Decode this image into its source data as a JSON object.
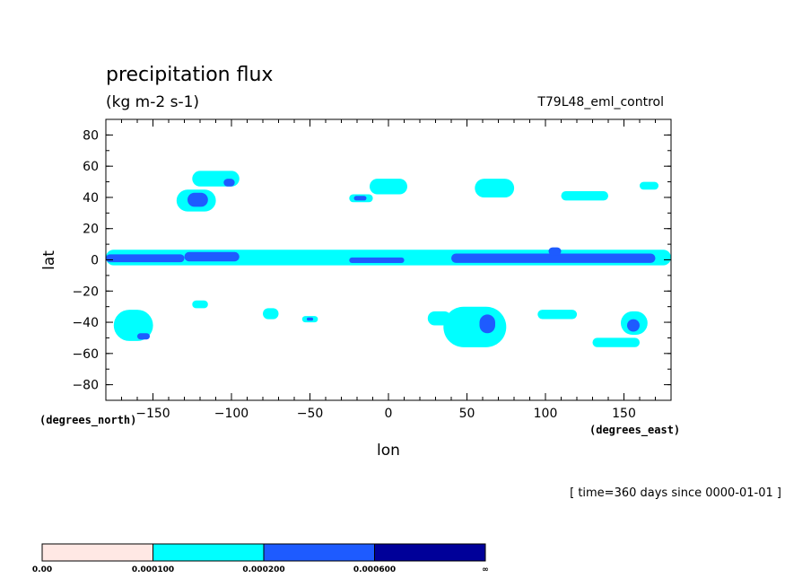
{
  "chart_data": {
    "type": "heatmap",
    "title": "precipitation flux",
    "units": "(kg m-2 s-1)",
    "run_label": "T79L48_eml_control",
    "xlabel": "lon",
    "ylabel": "lat",
    "x_units_note": "(degrees_east)",
    "y_units_note": "(degrees_north)",
    "time_note": "[ time=360 days since 0000-01-01 ]",
    "xlim": [
      -180,
      180
    ],
    "ylim": [
      -90,
      90
    ],
    "x_ticks": [
      -150,
      -100,
      -50,
      0,
      50,
      100,
      150
    ],
    "x_tick_labels": [
      "−150",
      "−100",
      "−50",
      "0",
      "50",
      "100",
      "150"
    ],
    "y_ticks": [
      80,
      60,
      40,
      20,
      0,
      -20,
      -40,
      -60,
      -80
    ],
    "y_tick_labels": [
      "80",
      "60",
      "40",
      "20",
      "0",
      "−20",
      "−40",
      "−60",
      "−80"
    ],
    "grid": false,
    "colorbar": {
      "levels": [
        "0.00",
        "0.000100",
        "0.000200",
        "0.000600",
        "∞"
      ],
      "colors": [
        "#ffe8e4",
        "#00ffff",
        "#1e5bff",
        "#000099"
      ]
    },
    "regions": [
      {
        "level": 1,
        "lon": [
          -180,
          180
        ],
        "lat": [
          -3.5,
          6.5
        ],
        "note": "tropical band"
      },
      {
        "level": 2,
        "lon": [
          -180,
          -130
        ],
        "lat": [
          -1.5,
          3.5
        ]
      },
      {
        "level": 2,
        "lon": [
          -130,
          -95
        ],
        "lat": [
          -1,
          5
        ]
      },
      {
        "level": 2,
        "lon": [
          -25,
          10
        ],
        "lat": [
          -2,
          1.5
        ]
      },
      {
        "level": 2,
        "lon": [
          40,
          170
        ],
        "lat": [
          -2,
          4
        ]
      },
      {
        "level": 2,
        "lon": [
          102,
          110
        ],
        "lat": [
          3,
          8
        ]
      },
      {
        "level": 1,
        "lon": [
          -135,
          -110
        ],
        "lat": [
          31,
          45
        ]
      },
      {
        "level": 2,
        "lon": [
          -128,
          -115
        ],
        "lat": [
          34,
          43
        ]
      },
      {
        "level": 1,
        "lon": [
          -125,
          -95
        ],
        "lat": [
          47,
          57
        ]
      },
      {
        "level": 2,
        "lon": [
          -105,
          -98
        ],
        "lat": [
          47,
          52
        ]
      },
      {
        "level": 1,
        "lon": [
          -25,
          -10
        ],
        "lat": [
          37,
          42
        ]
      },
      {
        "level": 2,
        "lon": [
          -22,
          -14
        ],
        "lat": [
          38,
          41
        ]
      },
      {
        "level": 1,
        "lon": [
          -12,
          12
        ],
        "lat": [
          42,
          52
        ]
      },
      {
        "level": 1,
        "lon": [
          55,
          80
        ],
        "lat": [
          40,
          52
        ]
      },
      {
        "level": 1,
        "lon": [
          110,
          140
        ],
        "lat": [
          38,
          44
        ]
      },
      {
        "level": 1,
        "lon": [
          160,
          172
        ],
        "lat": [
          45,
          50
        ]
      },
      {
        "level": 1,
        "lon": [
          -175,
          -150
        ],
        "lat": [
          -52,
          -32
        ]
      },
      {
        "level": 2,
        "lon": [
          -160,
          -152
        ],
        "lat": [
          -51,
          -47
        ]
      },
      {
        "level": 1,
        "lon": [
          -125,
          -115
        ],
        "lat": [
          -31,
          -26
        ]
      },
      {
        "level": 1,
        "lon": [
          -80,
          -70
        ],
        "lat": [
          -38,
          -31
        ]
      },
      {
        "level": 1,
        "lon": [
          -55,
          -45
        ],
        "lat": [
          -40,
          -36
        ]
      },
      {
        "level": 2,
        "lon": [
          -52,
          -48
        ],
        "lat": [
          -39,
          -37
        ]
      },
      {
        "level": 1,
        "lon": [
          25,
          40
        ],
        "lat": [
          -42,
          -33
        ]
      },
      {
        "level": 1,
        "lon": [
          35,
          75
        ],
        "lat": [
          -56,
          -30
        ]
      },
      {
        "level": 2,
        "lon": [
          58,
          68
        ],
        "lat": [
          -47,
          -35
        ]
      },
      {
        "level": 1,
        "lon": [
          95,
          120
        ],
        "lat": [
          -38,
          -32
        ]
      },
      {
        "level": 1,
        "lon": [
          130,
          160
        ],
        "lat": [
          -56,
          -50
        ]
      },
      {
        "level": 1,
        "lon": [
          148,
          165
        ],
        "lat": [
          -48,
          -33
        ]
      },
      {
        "level": 2,
        "lon": [
          152,
          160
        ],
        "lat": [
          -46,
          -38
        ]
      }
    ]
  }
}
